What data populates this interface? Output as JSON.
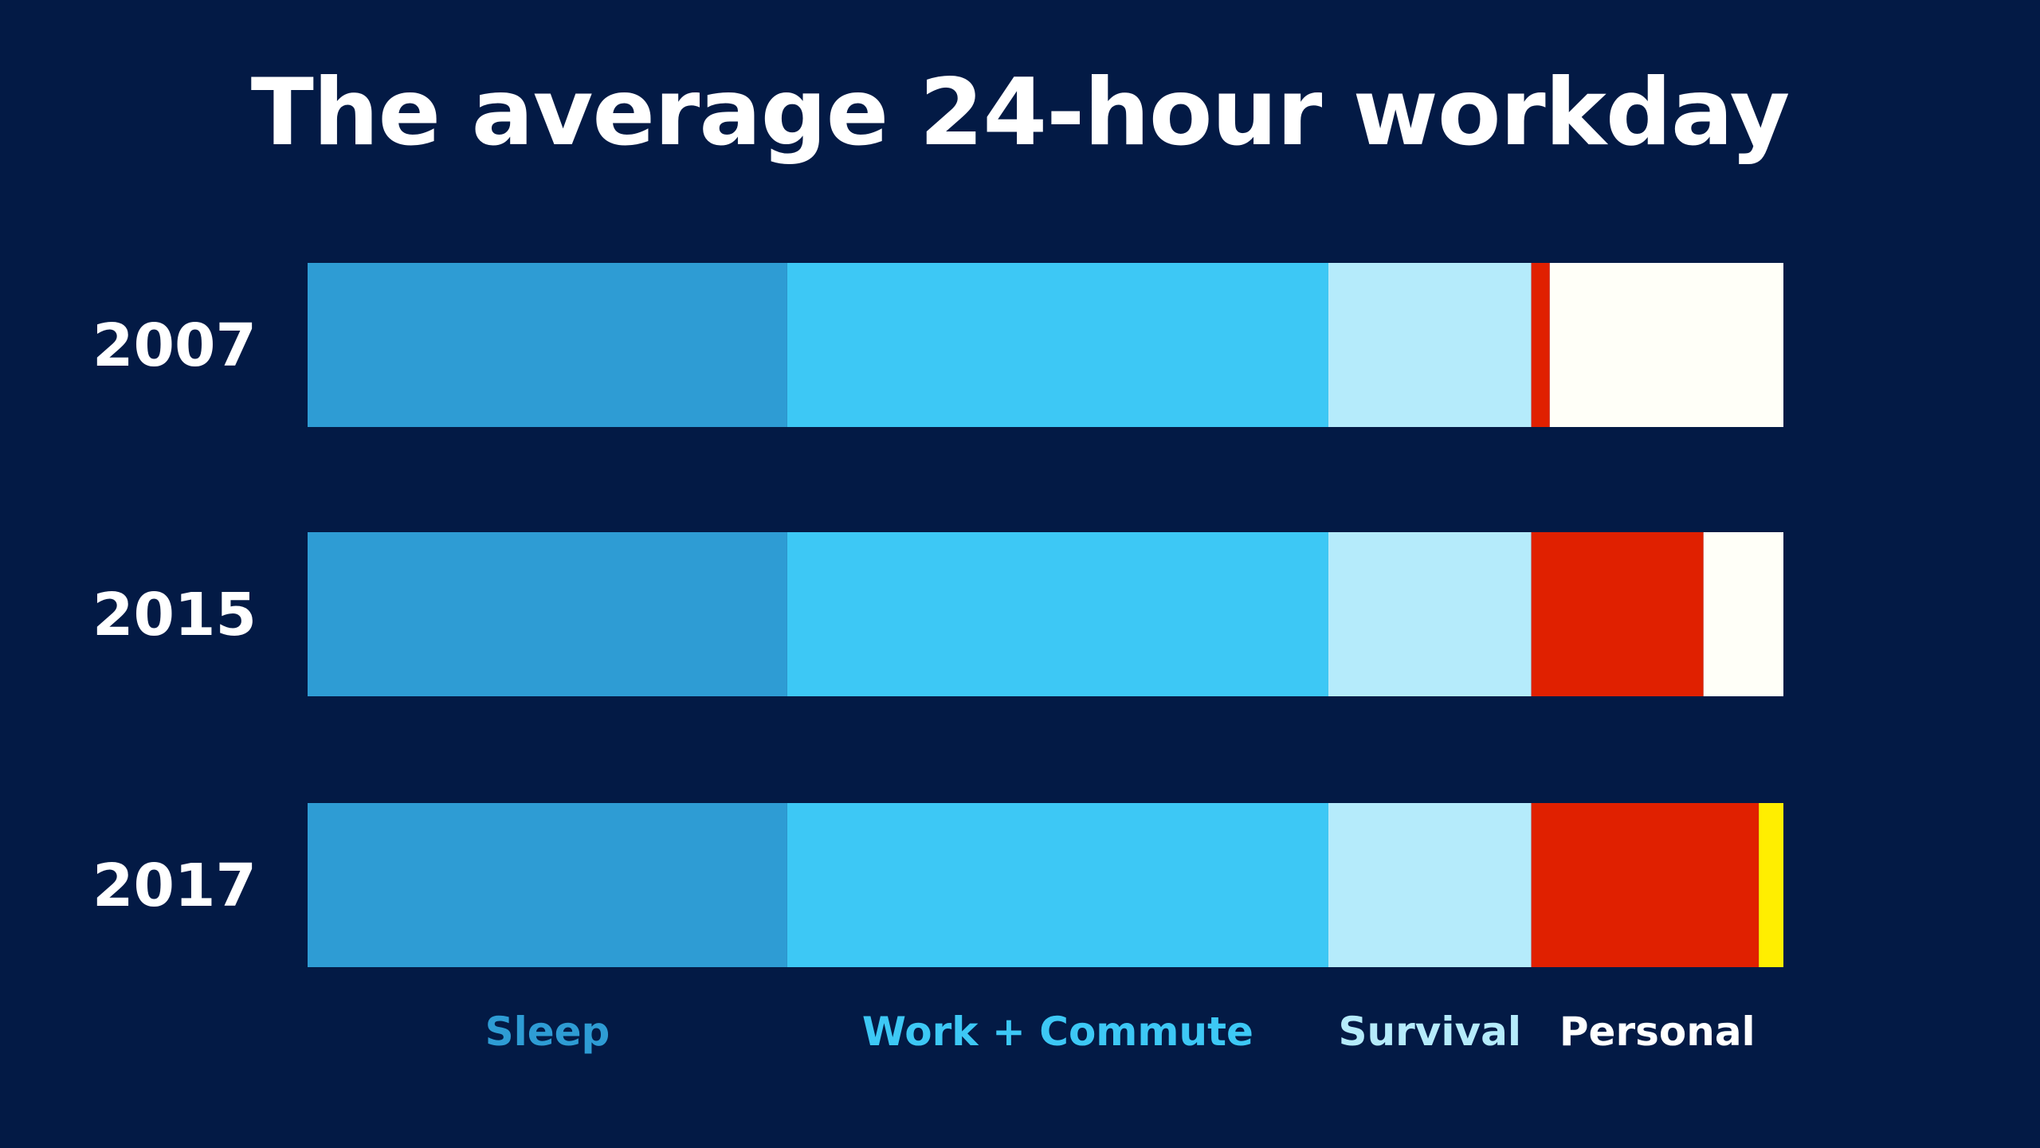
{
  "chart_data": {
    "type": "bar",
    "orientation": "horizontal",
    "stacked": true,
    "title": "The average 24-hour workday",
    "categories": [
      "2007",
      "2015",
      "2017"
    ],
    "xlim": [
      0,
      24
    ],
    "grid": false,
    "series": [
      {
        "name": "Sleep",
        "color": "#2e9cd4",
        "values": [
          7.8,
          7.8,
          7.8
        ]
      },
      {
        "name": "Work + Commute",
        "color": "#3dc8f5",
        "values": [
          8.8,
          8.8,
          8.8
        ]
      },
      {
        "name": "Survival",
        "color": "#b5ebfb",
        "values": [
          3.3,
          3.3,
          3.3
        ]
      },
      {
        "name": "Personal",
        "color": "#e02000",
        "values": [
          0.3,
          2.8,
          3.7
        ]
      },
      {
        "name": "",
        "color": "#fffff8",
        "values": [
          3.8,
          1.3,
          0
        ]
      },
      {
        "name": "",
        "color": "#ffee00",
        "values": [
          0,
          0,
          0.4
        ]
      }
    ],
    "legend_colors": [
      "#2e9cd4",
      "#3dc8f5",
      "#b5ebfb",
      "#ffffff"
    ]
  }
}
